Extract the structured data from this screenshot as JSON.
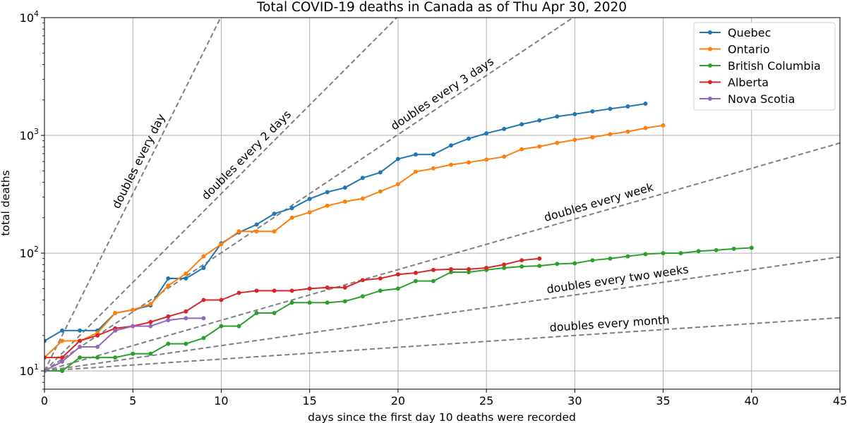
{
  "chart_data": {
    "type": "line",
    "title": "Total COVID-19 deaths in Canada as of Thu Apr 30, 2020",
    "xlabel": "days since the first day 10 deaths were recorded",
    "ylabel": "total deaths",
    "xlim": [
      0,
      45
    ],
    "ylim": [
      7,
      10000
    ],
    "yscale": "log",
    "grid": true,
    "legend_position": "top-right",
    "x_ticks": [
      0,
      5,
      10,
      15,
      20,
      25,
      30,
      35,
      40,
      45
    ],
    "y_ticks": [
      {
        "value": 10,
        "base": "10",
        "exp": "1"
      },
      {
        "value": 100,
        "base": "10",
        "exp": "2"
      },
      {
        "value": 1000,
        "base": "10",
        "exp": "3"
      },
      {
        "value": 10000,
        "base": "10",
        "exp": "4"
      }
    ],
    "series": [
      {
        "name": "Quebec",
        "color": "#1f77b4",
        "x": [
          0,
          1,
          2,
          3,
          4,
          5,
          6,
          7,
          8,
          9,
          10,
          11,
          12,
          13,
          14,
          15,
          16,
          17,
          18,
          19,
          20,
          21,
          22,
          23,
          24,
          25,
          26,
          27,
          28,
          29,
          30,
          31,
          32,
          33,
          34
        ],
        "values": [
          18,
          22,
          22,
          22,
          31,
          33,
          36,
          61,
          61,
          75,
          121,
          150,
          175,
          216,
          241,
          289,
          330,
          360,
          435,
          485,
          630,
          688,
          688,
          822,
          939,
          1041,
          1134,
          1243,
          1340,
          1446,
          1515,
          1599,
          1682,
          1761,
          1859
        ]
      },
      {
        "name": "Ontario",
        "color": "#ff7f0e",
        "x": [
          0,
          1,
          2,
          3,
          4,
          5,
          6,
          7,
          8,
          9,
          10,
          11,
          12,
          13,
          14,
          15,
          16,
          17,
          18,
          19,
          20,
          21,
          22,
          23,
          24,
          25,
          26,
          27,
          28,
          29,
          30,
          31,
          32,
          33,
          34,
          35
        ],
        "values": [
          13,
          18,
          18,
          21,
          31,
          33,
          37,
          53,
          67,
          94,
          119,
          153,
          153,
          153,
          200,
          222,
          253,
          274,
          291,
          334,
          385,
          491,
          524,
          564,
          590,
          623,
          659,
          763,
          804,
          864,
          917,
          964,
          1024,
          1076,
          1155,
          1216
        ]
      },
      {
        "name": "British Columbia",
        "color": "#2ca02c",
        "x": [
          0,
          1,
          2,
          3,
          4,
          5,
          6,
          7,
          8,
          9,
          10,
          11,
          12,
          13,
          14,
          15,
          16,
          17,
          18,
          19,
          20,
          21,
          22,
          23,
          24,
          25,
          26,
          27,
          28,
          29,
          30,
          31,
          32,
          33,
          34,
          35,
          36,
          37,
          38,
          39,
          40
        ],
        "values": [
          10,
          10,
          13,
          13,
          13,
          14,
          14,
          17,
          17,
          19,
          24,
          24,
          31,
          31,
          38,
          38,
          38,
          39,
          43,
          48,
          50,
          58,
          58,
          69,
          69,
          72,
          75,
          77,
          78,
          81,
          82,
          87,
          90,
          94,
          98,
          100,
          100,
          104,
          106,
          109,
          111
        ]
      },
      {
        "name": "Alberta",
        "color": "#d62728",
        "x": [
          0,
          1,
          2,
          3,
          4,
          5,
          6,
          7,
          8,
          9,
          10,
          11,
          12,
          13,
          14,
          15,
          16,
          17,
          18,
          19,
          20,
          21,
          22,
          23,
          24,
          25,
          26,
          27,
          28
        ],
        "values": [
          13,
          13,
          18,
          20,
          23,
          24,
          26,
          29,
          32,
          40,
          40,
          46,
          48,
          48,
          48,
          50,
          51,
          51,
          59,
          61,
          66,
          68,
          72,
          73,
          73,
          75,
          80,
          87,
          90
        ]
      },
      {
        "name": "Nova Scotia",
        "color": "#9467bd",
        "x": [
          0,
          1,
          2,
          3,
          4,
          5,
          6,
          7,
          8,
          9
        ],
        "values": [
          10,
          12,
          16,
          16,
          22,
          24,
          24,
          27,
          28,
          28
        ]
      }
    ],
    "reference_lines": [
      {
        "label": "doubles every day",
        "doubling_days": 1
      },
      {
        "label": "doubles every 2 days",
        "doubling_days": 2
      },
      {
        "label": "doubles every 3 days",
        "doubling_days": 3
      },
      {
        "label": "doubles every week",
        "doubling_days": 7
      },
      {
        "label": "doubles every two weeks",
        "doubling_days": 14
      },
      {
        "label": "doubles every month",
        "doubling_days": 30
      }
    ],
    "reference_start_value": 10
  }
}
